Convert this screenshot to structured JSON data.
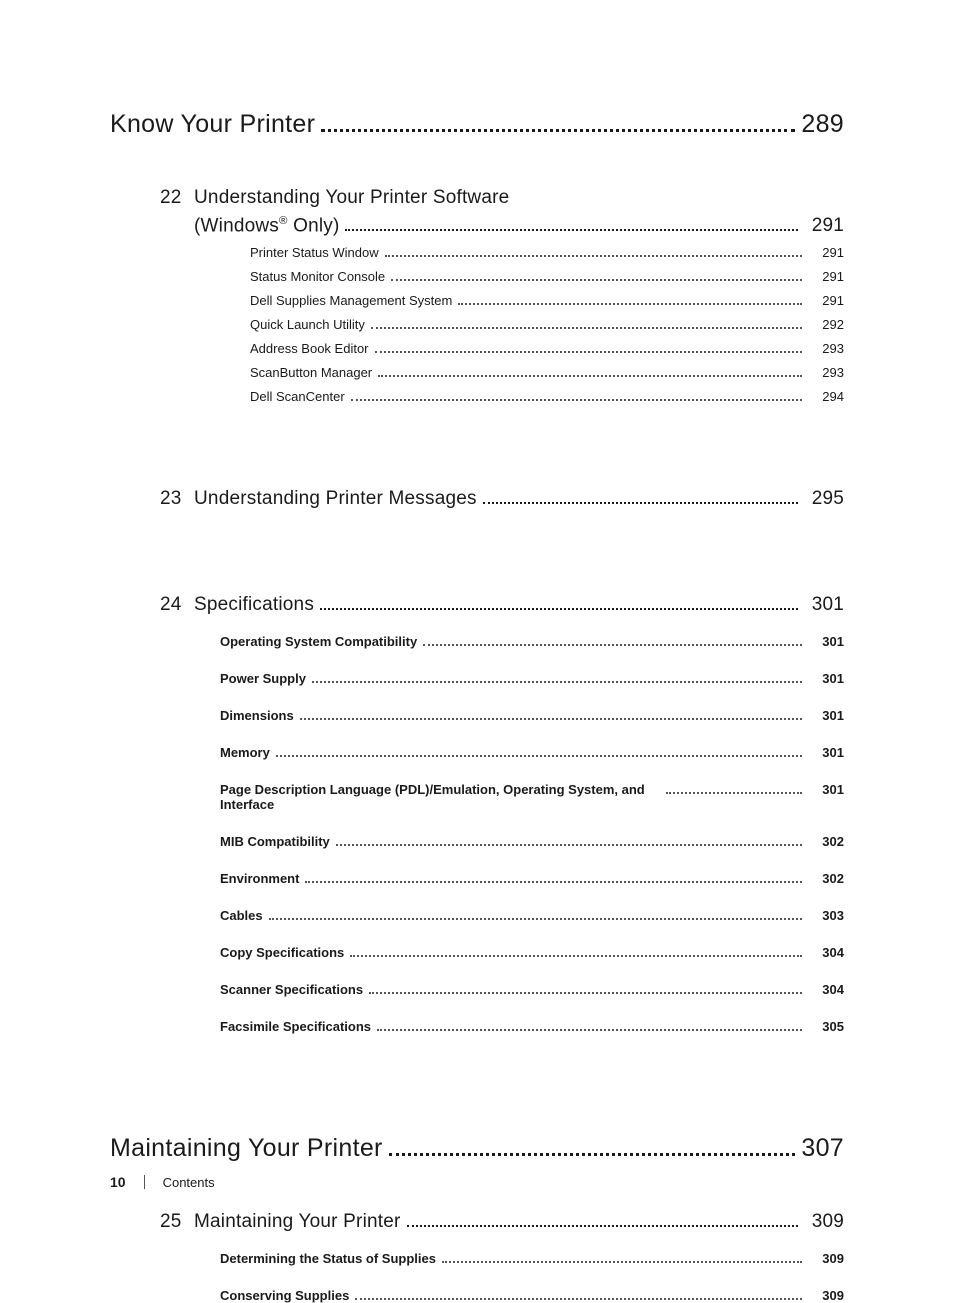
{
  "colors": {
    "text": "#1a1a1a",
    "dot": "#555555",
    "bg": "#ffffff"
  },
  "typography": {
    "part_fontsize": 25,
    "chapter_fontsize": 19,
    "sub_fontsize": 13,
    "section_fontsize": 13,
    "footer_fontsize": 13
  },
  "parts": [
    {
      "title": "Know Your Printer",
      "page": "289"
    },
    {
      "title": "Maintaining Your Printer",
      "page": "307"
    }
  ],
  "chapters": {
    "c22": {
      "num": "22",
      "title_line1": "Understanding Your Printer Software",
      "title_line2_pre": "(Windows",
      "title_line2_sup": "®",
      "title_line2_post": " Only)",
      "page": "291",
      "subs": [
        {
          "label": "Printer Status Window",
          "page": "291"
        },
        {
          "label": "Status Monitor Console",
          "page": "291"
        },
        {
          "label": "Dell Supplies Management System",
          "page": "291"
        },
        {
          "label": "Quick Launch Utility",
          "page": "292"
        },
        {
          "label": "Address Book Editor",
          "page": "293"
        },
        {
          "label": "ScanButton Manager",
          "page": "293"
        },
        {
          "label": "Dell ScanCenter",
          "page": "294"
        }
      ]
    },
    "c23": {
      "num": "23",
      "title": "Understanding Printer Messages",
      "page": "295"
    },
    "c24": {
      "num": "24",
      "title": "Specifications",
      "page": "301",
      "sections": [
        {
          "label": "Operating System Compatibility",
          "page": "301"
        },
        {
          "label": "Power Supply",
          "page": "301"
        },
        {
          "label": "Dimensions",
          "page": "301"
        },
        {
          "label": "Memory",
          "page": "301"
        },
        {
          "label": "Page Description Language (PDL)/Emulation, Operating System, and Interface",
          "page": "301"
        },
        {
          "label": "MIB Compatibility",
          "page": "302"
        },
        {
          "label": "Environment",
          "page": "302"
        },
        {
          "label": "Cables",
          "page": "303"
        },
        {
          "label": "Copy Specifications",
          "page": "304"
        },
        {
          "label": "Scanner Specifications",
          "page": "304"
        },
        {
          "label": "Facsimile Specifications",
          "page": "305"
        }
      ]
    },
    "c25": {
      "num": "25",
      "title": "Maintaining Your Printer",
      "page": "309",
      "sections": [
        {
          "label": "Determining the Status of Supplies",
          "page": "309"
        },
        {
          "label": "Conserving Supplies",
          "page": "309"
        }
      ]
    }
  },
  "footer": {
    "page_number": "10",
    "label": "Contents"
  }
}
